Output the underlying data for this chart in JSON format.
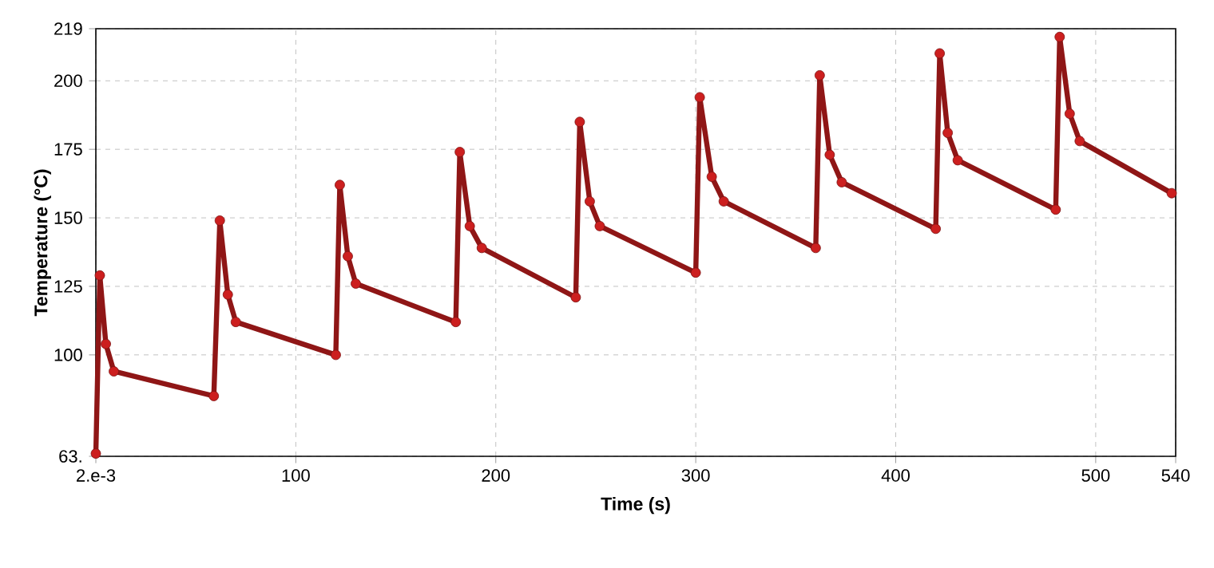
{
  "chart_data": {
    "type": "line",
    "xlabel": "Time (s)",
    "ylabel": "Temperature (°C)",
    "xlim": [
      0.002,
      540
    ],
    "ylim": [
      63,
      219
    ],
    "xticks": [
      {
        "value": 0.002,
        "label": "2.e-3"
      },
      100,
      200,
      300,
      400,
      500,
      540
    ],
    "yticks": [
      {
        "value": 63,
        "label": "63."
      },
      100,
      125,
      150,
      175,
      200,
      219
    ],
    "grid": true,
    "marker": "circle",
    "series": [
      {
        "color": "#cc1f1f",
        "x": [
          0.002,
          2,
          5,
          9,
          59,
          62,
          66,
          70,
          120,
          122,
          126,
          130,
          180,
          182,
          187,
          193,
          240,
          242,
          247,
          252,
          300,
          302,
          308,
          314,
          360,
          362,
          367,
          373,
          420,
          422,
          426,
          431,
          480,
          482,
          487,
          492,
          538
        ],
        "values": [
          64,
          129,
          104,
          94,
          85,
          149,
          122,
          112,
          100,
          162,
          136,
          126,
          112,
          174,
          147,
          139,
          121,
          185,
          156,
          147,
          130,
          194,
          165,
          156,
          139,
          202,
          173,
          163,
          146,
          210,
          181,
          171,
          153,
          216,
          188,
          178,
          159
        ]
      }
    ]
  }
}
